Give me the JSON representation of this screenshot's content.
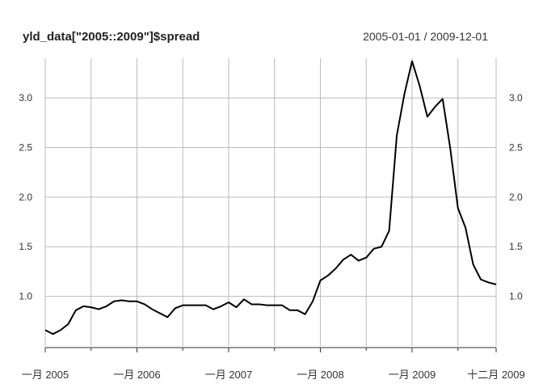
{
  "chart_data": {
    "type": "line",
    "title": "yld_data[\"2005::2009\"]$spread",
    "date_range": "2005-01-01 / 2009-12-01",
    "xlabel": "",
    "ylabel": "",
    "ylim": [
      0.5,
      3.4
    ],
    "y_ticks": [
      1.0,
      1.5,
      2.0,
      2.5,
      3.0
    ],
    "y_tick_labels": [
      "1.0",
      "1.5",
      "2.0",
      "2.5",
      "3.0"
    ],
    "x_ticks": [
      {
        "date": "2005-01",
        "label": "一月 2005"
      },
      {
        "date": "2006-01",
        "label": "一月 2006"
      },
      {
        "date": "2007-01",
        "label": "一月 2007"
      },
      {
        "date": "2008-01",
        "label": "一月 2008"
      },
      {
        "date": "2009-01",
        "label": "一月 2009"
      },
      {
        "date": "2009-12",
        "label": "十二月 2009"
      }
    ],
    "minor_x_ticks": [
      "2005-07",
      "2006-07",
      "2007-07",
      "2008-07",
      "2009-07"
    ],
    "grid": true,
    "line_color": "#000000",
    "grid_color": "#bbbbbb",
    "series": [
      {
        "x": [
          "2005-01",
          "2005-02",
          "2005-03",
          "2005-04",
          "2005-05",
          "2005-06",
          "2005-07",
          "2005-08",
          "2005-09",
          "2005-10",
          "2005-11",
          "2005-12",
          "2006-01",
          "2006-02",
          "2006-03",
          "2006-04",
          "2006-05",
          "2006-06",
          "2006-07",
          "2006-08",
          "2006-09",
          "2006-10",
          "2006-11",
          "2006-12",
          "2007-01",
          "2007-02",
          "2007-03",
          "2007-04",
          "2007-05",
          "2007-06",
          "2007-07",
          "2007-08",
          "2007-09",
          "2007-10",
          "2007-11",
          "2007-12",
          "2008-01",
          "2008-02",
          "2008-03",
          "2008-04",
          "2008-05",
          "2008-06",
          "2008-07",
          "2008-08",
          "2008-09",
          "2008-10",
          "2008-11",
          "2008-12",
          "2009-01",
          "2009-02",
          "2009-03",
          "2009-04",
          "2009-05",
          "2009-06",
          "2009-07",
          "2009-08",
          "2009-09",
          "2009-10",
          "2009-11",
          "2009-12"
        ],
        "values": [
          0.66,
          0.62,
          0.66,
          0.72,
          0.86,
          0.9,
          0.89,
          0.87,
          0.9,
          0.95,
          0.96,
          0.95,
          0.95,
          0.92,
          0.87,
          0.83,
          0.79,
          0.88,
          0.91,
          0.91,
          0.91,
          0.91,
          0.87,
          0.9,
          0.94,
          0.89,
          0.97,
          0.92,
          0.92,
          0.91,
          0.91,
          0.91,
          0.86,
          0.86,
          0.82,
          0.95,
          1.16,
          1.21,
          1.28,
          1.37,
          1.42,
          1.36,
          1.39,
          1.48,
          1.5,
          1.66,
          2.62,
          3.04,
          3.37,
          3.12,
          2.81,
          2.91,
          2.99,
          2.49,
          1.89,
          1.69,
          1.32,
          1.17,
          1.14,
          1.12
        ]
      }
    ]
  }
}
